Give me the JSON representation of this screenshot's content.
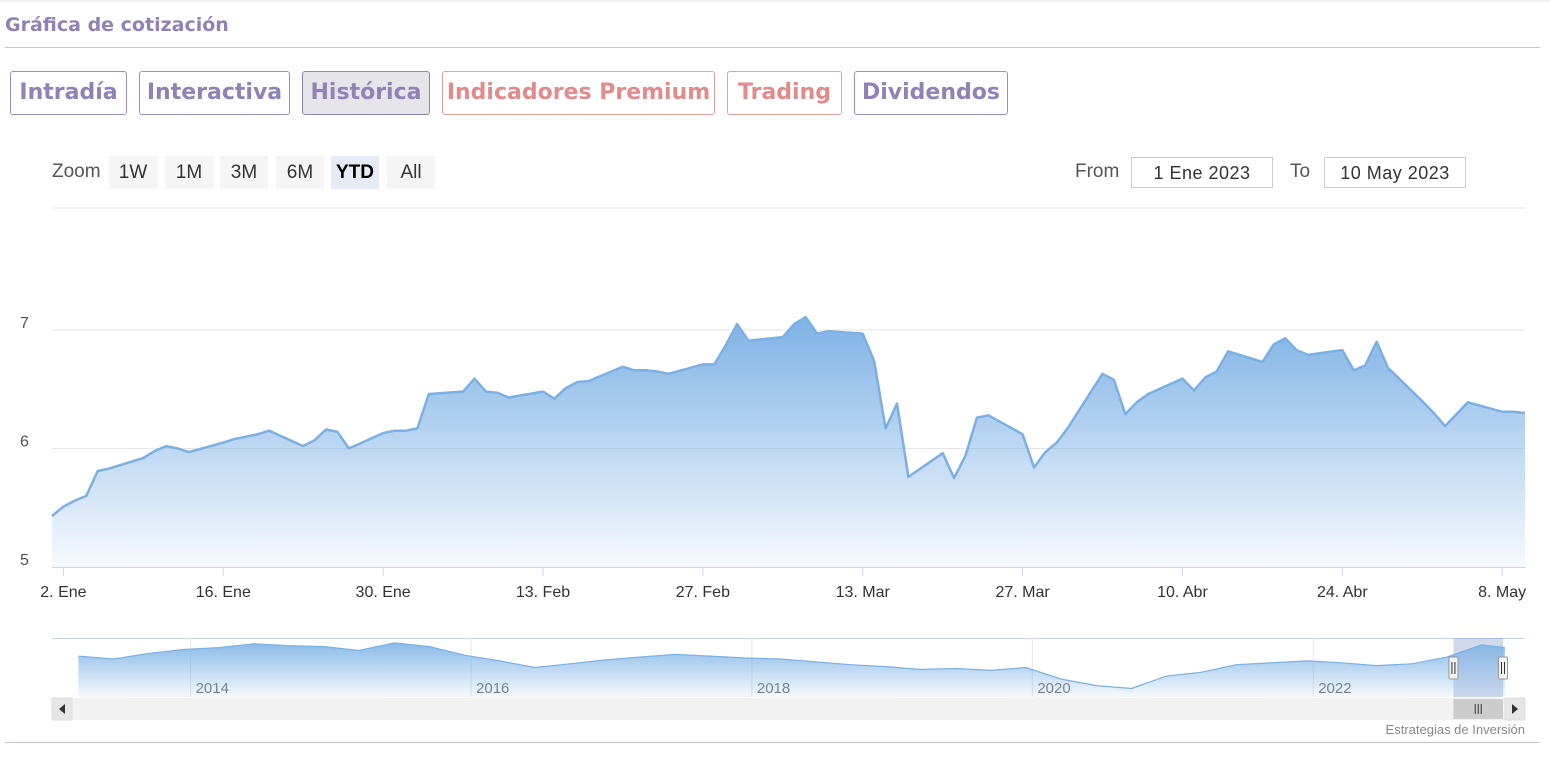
{
  "heading": "Gráfica de cotización",
  "tabs": [
    {
      "label": "Intradía",
      "state": "normal"
    },
    {
      "label": "Interactiva",
      "state": "normal"
    },
    {
      "label": "Histórica",
      "state": "active"
    },
    {
      "label": "Indicadores Premium",
      "state": "premium"
    },
    {
      "label": "Trading",
      "state": "premium"
    },
    {
      "label": "Dividendos",
      "state": "normal"
    }
  ],
  "range_selector": {
    "zoom_label": "Zoom",
    "buttons": [
      "1W",
      "1M",
      "3M",
      "6M",
      "YTD",
      "All"
    ],
    "selected": "YTD",
    "from_label": "From",
    "from_value": "1 Ene 2023",
    "to_label": "To",
    "to_value": "10 May 2023"
  },
  "credit": "Estrategias de Inversión",
  "colors": {
    "line": "#7cb0e3",
    "fill_top": "#7eb2e6",
    "tab_purple": "#8e82b6",
    "tab_premium": "#e38a8a"
  },
  "chart_data": {
    "type": "area",
    "ylim": [
      5,
      8
    ],
    "yticks": [
      5,
      6,
      7
    ],
    "x_range": [
      "2023-01-01",
      "2023-05-10"
    ],
    "xticks": [
      {
        "date": "2023-01-02",
        "label": "2. Ene"
      },
      {
        "date": "2023-01-16",
        "label": "16. Ene"
      },
      {
        "date": "2023-01-30",
        "label": "30. Ene"
      },
      {
        "date": "2023-02-13",
        "label": "13. Feb"
      },
      {
        "date": "2023-02-27",
        "label": "27. Feb"
      },
      {
        "date": "2023-03-13",
        "label": "13. Mar"
      },
      {
        "date": "2023-03-27",
        "label": "27. Mar"
      },
      {
        "date": "2023-04-10",
        "label": "10. Abr"
      },
      {
        "date": "2023-04-24",
        "label": "24. Abr"
      },
      {
        "date": "2023-05-08",
        "label": "8. May"
      }
    ],
    "grid": true,
    "series": [
      {
        "values": [
          [
            "2023-01-01",
            5.43
          ],
          [
            "2023-01-02",
            5.51
          ],
          [
            "2023-01-03",
            5.56
          ],
          [
            "2023-01-04",
            5.6
          ],
          [
            "2023-01-05",
            5.81
          ],
          [
            "2023-01-06",
            5.83
          ],
          [
            "2023-01-09",
            5.92
          ],
          [
            "2023-01-10",
            5.98
          ],
          [
            "2023-01-11",
            6.02
          ],
          [
            "2023-01-12",
            6.0
          ],
          [
            "2023-01-13",
            5.97
          ],
          [
            "2023-01-16",
            6.05
          ],
          [
            "2023-01-17",
            6.08
          ],
          [
            "2023-01-18",
            6.1
          ],
          [
            "2023-01-19",
            6.12
          ],
          [
            "2023-01-20",
            6.15
          ],
          [
            "2023-01-23",
            6.02
          ],
          [
            "2023-01-24",
            6.07
          ],
          [
            "2023-01-25",
            6.16
          ],
          [
            "2023-01-26",
            6.14
          ],
          [
            "2023-01-27",
            6.0
          ],
          [
            "2023-01-30",
            6.13
          ],
          [
            "2023-01-31",
            6.15
          ],
          [
            "2023-02-01",
            6.15
          ],
          [
            "2023-02-02",
            6.17
          ],
          [
            "2023-02-03",
            6.46
          ],
          [
            "2023-02-06",
            6.48
          ],
          [
            "2023-02-07",
            6.59
          ],
          [
            "2023-02-08",
            6.48
          ],
          [
            "2023-02-09",
            6.47
          ],
          [
            "2023-02-10",
            6.43
          ],
          [
            "2023-02-13",
            6.48
          ],
          [
            "2023-02-14",
            6.42
          ],
          [
            "2023-02-15",
            6.51
          ],
          [
            "2023-02-16",
            6.56
          ],
          [
            "2023-02-17",
            6.57
          ],
          [
            "2023-02-20",
            6.69
          ],
          [
            "2023-02-21",
            6.66
          ],
          [
            "2023-02-22",
            6.66
          ],
          [
            "2023-02-23",
            6.65
          ],
          [
            "2023-02-24",
            6.63
          ],
          [
            "2023-02-27",
            6.71
          ],
          [
            "2023-02-28",
            6.71
          ],
          [
            "2023-03-01",
            6.87
          ],
          [
            "2023-03-02",
            7.05
          ],
          [
            "2023-03-03",
            6.91
          ],
          [
            "2023-03-06",
            6.94
          ],
          [
            "2023-03-07",
            7.05
          ],
          [
            "2023-03-08",
            7.11
          ],
          [
            "2023-03-09",
            6.97
          ],
          [
            "2023-03-10",
            6.99
          ],
          [
            "2023-03-13",
            6.97
          ],
          [
            "2023-03-14",
            6.74
          ],
          [
            "2023-03-15",
            6.17
          ],
          [
            "2023-03-16",
            6.38
          ],
          [
            "2023-03-17",
            5.76
          ],
          [
            "2023-03-20",
            5.96
          ],
          [
            "2023-03-21",
            5.75
          ],
          [
            "2023-03-22",
            5.94
          ],
          [
            "2023-03-23",
            6.26
          ],
          [
            "2023-03-24",
            6.28
          ],
          [
            "2023-03-27",
            6.12
          ],
          [
            "2023-03-28",
            5.84
          ],
          [
            "2023-03-29",
            5.97
          ],
          [
            "2023-03-30",
            6.05
          ],
          [
            "2023-03-31",
            6.18
          ],
          [
            "2023-04-03",
            6.63
          ],
          [
            "2023-04-04",
            6.58
          ],
          [
            "2023-04-05",
            6.29
          ],
          [
            "2023-04-06",
            6.39
          ],
          [
            "2023-04-07",
            6.46
          ],
          [
            "2023-04-10",
            6.59
          ],
          [
            "2023-04-11",
            6.49
          ],
          [
            "2023-04-12",
            6.6
          ],
          [
            "2023-04-13",
            6.65
          ],
          [
            "2023-04-14",
            6.82
          ],
          [
            "2023-04-17",
            6.73
          ],
          [
            "2023-04-18",
            6.88
          ],
          [
            "2023-04-19",
            6.93
          ],
          [
            "2023-04-20",
            6.83
          ],
          [
            "2023-04-21",
            6.79
          ],
          [
            "2023-04-24",
            6.83
          ],
          [
            "2023-04-25",
            6.66
          ],
          [
            "2023-04-26",
            6.7
          ],
          [
            "2023-04-27",
            6.9
          ],
          [
            "2023-04-28",
            6.68
          ],
          [
            "2023-05-01",
            6.4
          ],
          [
            "2023-05-02",
            6.3
          ],
          [
            "2023-05-03",
            6.19
          ],
          [
            "2023-05-04",
            6.29
          ],
          [
            "2023-05-05",
            6.39
          ],
          [
            "2023-05-08",
            6.31
          ],
          [
            "2023-05-09",
            6.31
          ],
          [
            "2023-05-10",
            6.3
          ]
        ]
      }
    ],
    "navigator": {
      "x_range": [
        "2013-03-01",
        "2023-05-10"
      ],
      "year_labels": [
        "2014",
        "2016",
        "2018",
        "2020",
        "2022"
      ],
      "selected_range": [
        "2023-01-01",
        "2023-05-10"
      ],
      "values": [
        [
          "2013-03",
          4.3
        ],
        [
          "2013-06",
          4.0
        ],
        [
          "2013-09",
          4.6
        ],
        [
          "2013-12",
          5.0
        ],
        [
          "2014-03",
          5.2
        ],
        [
          "2014-06",
          5.6
        ],
        [
          "2014-09",
          5.4
        ],
        [
          "2014-12",
          5.3
        ],
        [
          "2015-03",
          4.9
        ],
        [
          "2015-06",
          5.7
        ],
        [
          "2015-09",
          5.3
        ],
        [
          "2015-12",
          4.4
        ],
        [
          "2016-03",
          3.8
        ],
        [
          "2016-06",
          3.1
        ],
        [
          "2016-09",
          3.5
        ],
        [
          "2016-12",
          3.9
        ],
        [
          "2017-03",
          4.2
        ],
        [
          "2017-06",
          4.5
        ],
        [
          "2017-09",
          4.3
        ],
        [
          "2017-12",
          4.1
        ],
        [
          "2018-03",
          4.0
        ],
        [
          "2018-06",
          3.7
        ],
        [
          "2018-09",
          3.4
        ],
        [
          "2018-12",
          3.2
        ],
        [
          "2019-03",
          2.9
        ],
        [
          "2019-06",
          3.0
        ],
        [
          "2019-09",
          2.8
        ],
        [
          "2019-12",
          3.1
        ],
        [
          "2020-03",
          1.9
        ],
        [
          "2020-06",
          1.2
        ],
        [
          "2020-09",
          0.9
        ],
        [
          "2020-12",
          2.2
        ],
        [
          "2021-03",
          2.6
        ],
        [
          "2021-06",
          3.4
        ],
        [
          "2021-09",
          3.6
        ],
        [
          "2021-12",
          3.8
        ],
        [
          "2022-03",
          3.6
        ],
        [
          "2022-06",
          3.3
        ],
        [
          "2022-09",
          3.5
        ],
        [
          "2022-12",
          4.2
        ],
        [
          "2023-03",
          5.5
        ],
        [
          "2023-05",
          5.2
        ]
      ]
    }
  }
}
